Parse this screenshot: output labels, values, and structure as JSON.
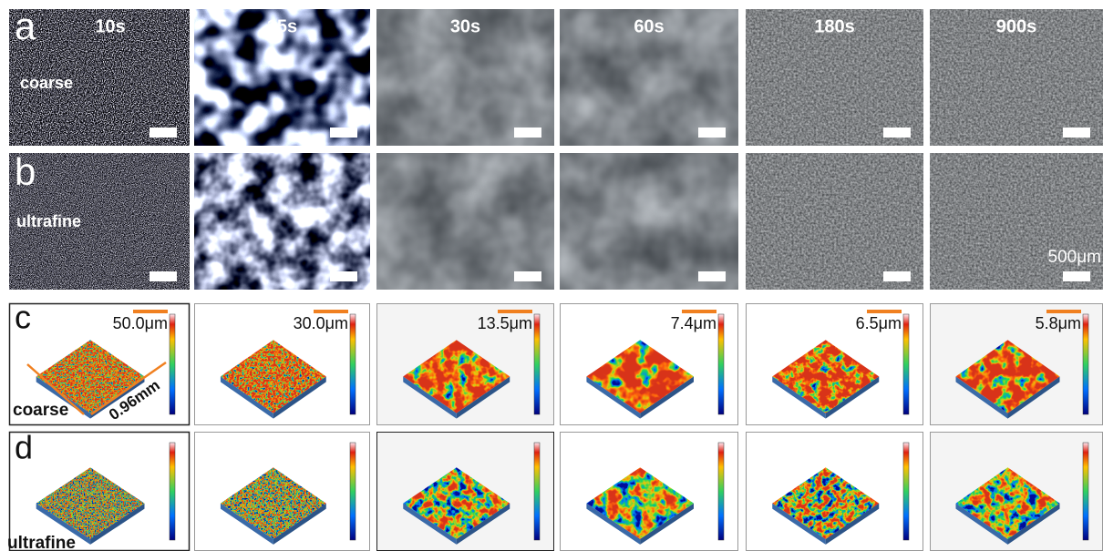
{
  "panels": {
    "a": {
      "letter": "a",
      "label": "coarse",
      "times": [
        "10s",
        "15s",
        "30s",
        "60s",
        "180s",
        "900s"
      ]
    },
    "b": {
      "letter": "b",
      "label": "ultrafine",
      "scale_bar": "500μm"
    },
    "c": {
      "letter": "c",
      "label": "coarse",
      "dimension": "0.96mm",
      "heights": [
        "50.0μm",
        "30.0μm",
        "13.5μm",
        "7.4μm",
        "6.5μm",
        "5.8μm"
      ]
    },
    "d": {
      "letter": "d",
      "label": "ultrafine"
    }
  }
}
